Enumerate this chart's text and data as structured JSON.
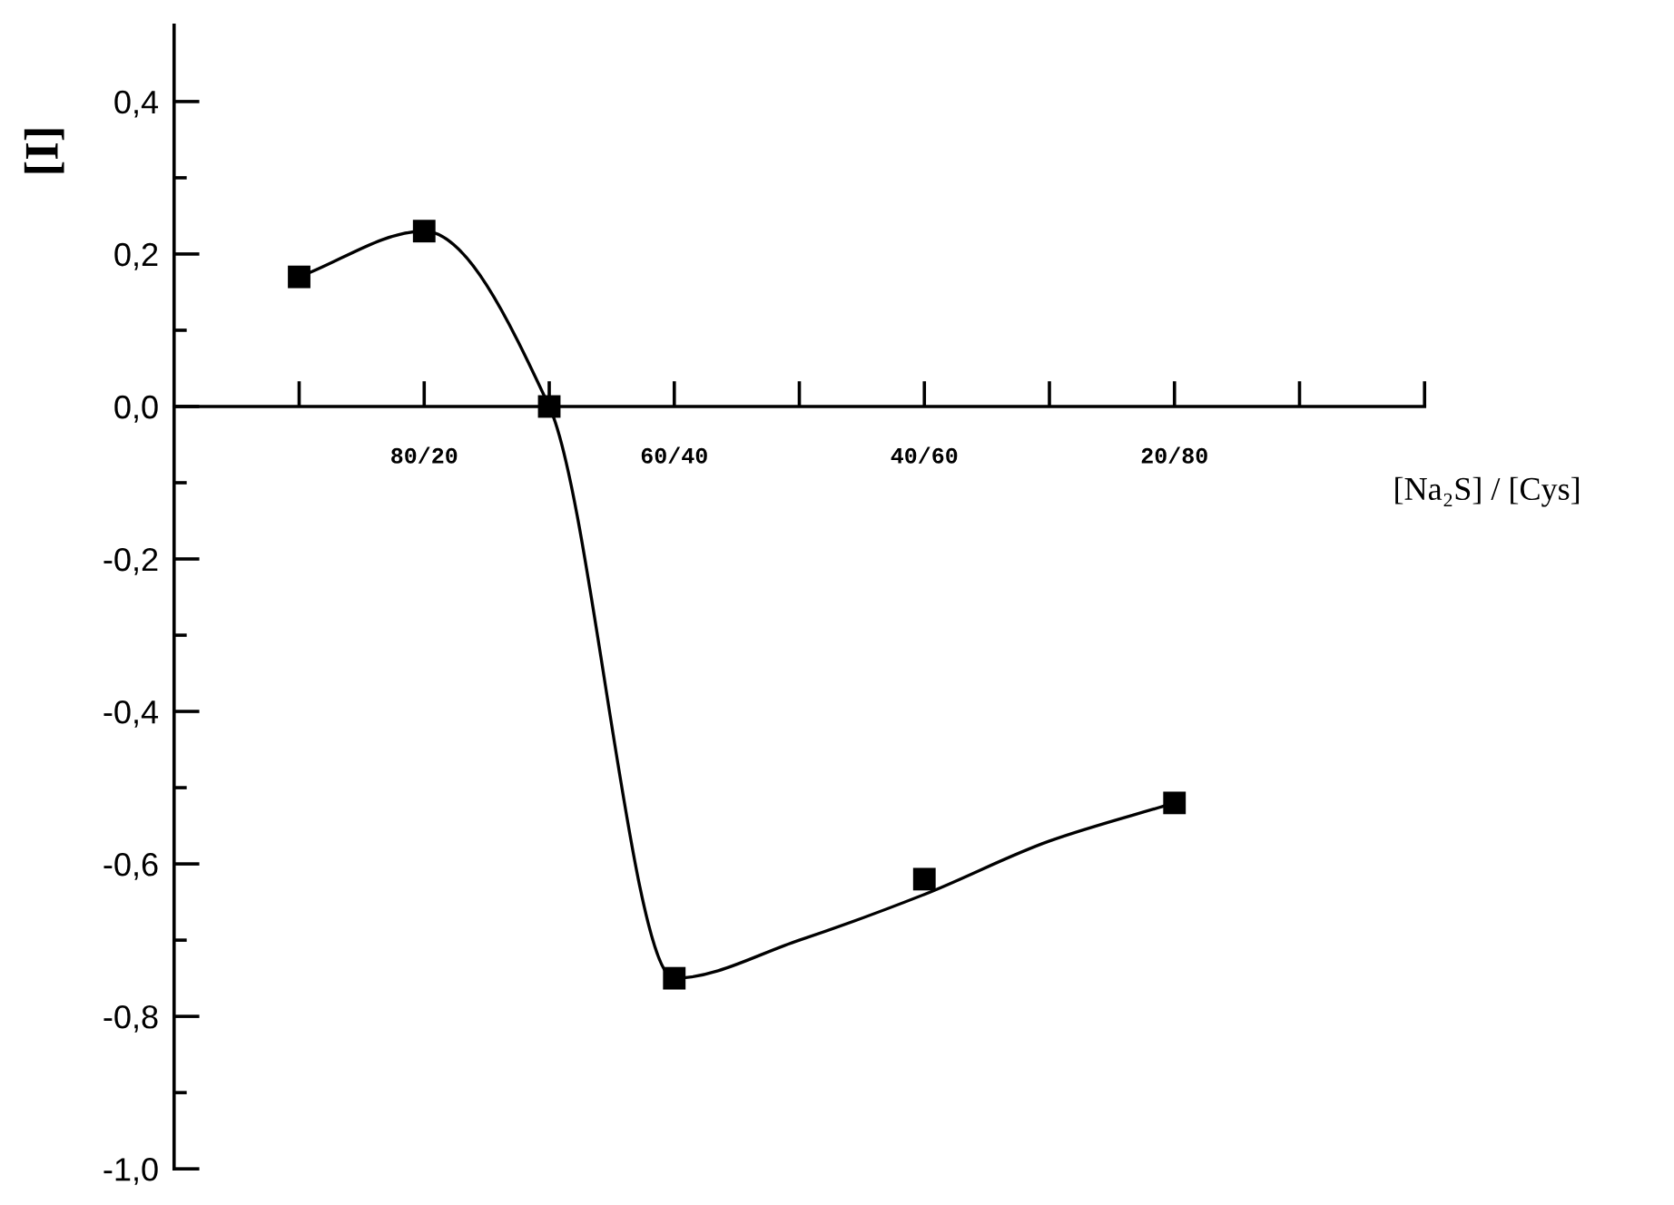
{
  "chart_data": {
    "type": "line",
    "xlabel": "[Na₂S] / [Cys]",
    "ylabel": "[I]",
    "categories": [
      null,
      "80/20",
      null,
      "60/40",
      null,
      "40/60",
      null,
      "20/80",
      null,
      null
    ],
    "ylim": [
      -1.0,
      0.5
    ],
    "yticks": [
      {
        "value": -1.0,
        "label": "-1,0"
      },
      {
        "value": -0.9,
        "label": null
      },
      {
        "value": -0.8,
        "label": "-0,8"
      },
      {
        "value": -0.7,
        "label": null
      },
      {
        "value": -0.6,
        "label": "-0,6"
      },
      {
        "value": -0.5,
        "label": null
      },
      {
        "value": -0.4,
        "label": "-0,4"
      },
      {
        "value": -0.3,
        "label": null
      },
      {
        "value": -0.2,
        "label": "-0,2"
      },
      {
        "value": -0.1,
        "label": null
      },
      {
        "value": 0.0,
        "label": "0,0"
      },
      {
        "value": 0.1,
        "label": null
      },
      {
        "value": 0.2,
        "label": "0,2"
      },
      {
        "value": 0.3,
        "label": null
      },
      {
        "value": 0.4,
        "label": "0,4"
      }
    ],
    "series": [
      {
        "color": "#000000",
        "marker": "none",
        "line_style": "solid",
        "values": [
          0.17,
          0.23,
          0.0,
          -0.75,
          -0.7,
          -0.64,
          -0.57,
          -0.52,
          null,
          null
        ]
      },
      {
        "type": "scatter",
        "color": "#000000",
        "marker": "square",
        "values": [
          0.17,
          0.23,
          0.0,
          -0.75,
          null,
          -0.62,
          null,
          -0.52,
          null,
          null
        ]
      }
    ]
  }
}
